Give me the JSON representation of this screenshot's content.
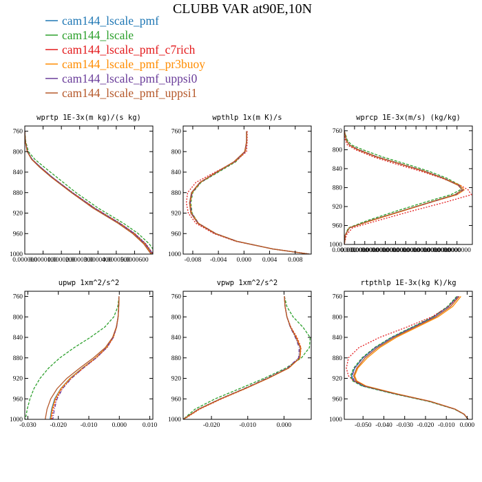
{
  "title": "CLUBB VAR at90E,10N",
  "legend": [
    {
      "name": "cam144_lscale_pmf",
      "color": "#1f77b4",
      "dash": ""
    },
    {
      "name": "cam144_lscale",
      "color": "#2ca02c",
      "dash": "4,2"
    },
    {
      "name": "cam144_lscale_pmf_c7rich",
      "color": "#e31a1c",
      "dash": "2,2"
    },
    {
      "name": "cam144_lscale_pmf_pr3buoy",
      "color": "#ff8c00",
      "dash": ""
    },
    {
      "name": "cam144_lscale_pmf_uppsi0",
      "color": "#6a3d9a",
      "dash": "5,2,1,2"
    },
    {
      "name": "cam144_lscale_pmf_uppsi1",
      "color": "#b5582a",
      "dash": ""
    }
  ],
  "chart_data": [
    {
      "type": "line",
      "title": "wprtp  1E-3x(m kg)/(s kg)",
      "ylim": [
        1000,
        750
      ],
      "yticks": [
        "760",
        "800",
        "840",
        "880",
        "920",
        "960",
        "1000"
      ],
      "ytick_values": [
        760,
        800,
        840,
        880,
        920,
        960,
        1000
      ],
      "xlim": [
        0,
        7e-05
      ],
      "xticks": [
        "0.000000",
        "0.0000100",
        "0.0000200",
        "0.0000300",
        "0.0000400",
        "0.0000500",
        "0.0000600"
      ],
      "xtick_values": [
        0,
        1e-05,
        2e-05,
        3e-05,
        4e-05,
        5e-05,
        6e-05
      ],
      "y": [
        760,
        780,
        800,
        815,
        830,
        850,
        880,
        910,
        940,
        960,
        980,
        1000
      ],
      "series": [
        {
          "values": [
            0,
            3e-07,
            1.5e-06,
            4e-06,
            8.5e-06,
            1.5e-05,
            2.6e-05,
            3.8e-05,
            5.2e-05,
            6e-05,
            6.6e-05,
            7e-05
          ]
        },
        {
          "values": [
            0,
            5e-07,
            2e-06,
            5.5e-06,
            1.05e-05,
            1.75e-05,
            2.8e-05,
            4e-05,
            5.4e-05,
            6.2e-05,
            6.8e-05,
            7.2e-05
          ]
        },
        {
          "values": [
            0,
            3e-07,
            1.5e-06,
            4e-06,
            8.5e-06,
            1.5e-05,
            2.62e-05,
            3.82e-05,
            5.22e-05,
            6.02e-05,
            6.62e-05,
            7.02e-05
          ]
        },
        {
          "values": [
            0,
            3e-07,
            1.4e-06,
            3.8e-06,
            8e-06,
            1.45e-05,
            2.55e-05,
            3.75e-05,
            5.15e-05,
            5.95e-05,
            6.55e-05,
            6.95e-05
          ]
        },
        {
          "values": [
            0,
            3e-07,
            1.5e-06,
            4e-06,
            8.5e-06,
            1.5e-05,
            2.6e-05,
            3.8e-05,
            5.18e-05,
            5.98e-05,
            6.58e-05,
            6.98e-05
          ]
        },
        {
          "values": [
            0,
            3e-07,
            1.3e-06,
            3.7e-06,
            8e-06,
            1.45e-05,
            2.55e-05,
            3.72e-05,
            5.1e-05,
            5.9e-05,
            6.5e-05,
            6.9e-05
          ]
        }
      ]
    },
    {
      "type": "line",
      "title": "wpthlp  1x(m K)/s",
      "ylim": [
        1000,
        750
      ],
      "yticks": [
        "760",
        "800",
        "840",
        "880",
        "920",
        "960",
        "1000"
      ],
      "ytick_values": [
        760,
        800,
        840,
        880,
        920,
        960,
        1000
      ],
      "xlim": [
        -0.0095,
        0.0105
      ],
      "xticks": [
        "-0.008",
        "-0.004",
        "0.000",
        "0.004",
        "0.008"
      ],
      "xtick_values": [
        -0.008,
        -0.004,
        0,
        0.004,
        0.008
      ],
      "y": [
        760,
        780,
        800,
        820,
        840,
        860,
        880,
        900,
        920,
        940,
        960,
        975,
        990,
        1000
      ],
      "series": [
        {
          "values": [
            0.0004,
            0.0004,
            0.0002,
            -0.0015,
            -0.0042,
            -0.0068,
            -0.0082,
            -0.0085,
            -0.0083,
            -0.0072,
            -0.0045,
            -0.0012,
            0.0045,
            0.0102
          ]
        },
        {
          "values": [
            0.0004,
            0.0004,
            0.0002,
            -0.0013,
            -0.004,
            -0.0067,
            -0.008,
            -0.0083,
            -0.0081,
            -0.0071,
            -0.0044,
            -0.0011,
            0.0045,
            0.0102
          ]
        },
        {
          "values": [
            0.0005,
            0.0005,
            0.0004,
            -0.0014,
            -0.0045,
            -0.0075,
            -0.0088,
            -0.009,
            -0.0087,
            -0.0075,
            -0.0047,
            -0.0013,
            0.0045,
            0.0102
          ]
        },
        {
          "values": [
            0.0004,
            0.0004,
            0.0002,
            -0.0015,
            -0.0042,
            -0.0068,
            -0.0081,
            -0.0084,
            -0.0082,
            -0.0071,
            -0.0044,
            -0.0011,
            0.0045,
            0.0102
          ]
        },
        {
          "values": [
            0.0004,
            0.0004,
            0.0002,
            -0.0015,
            -0.0042,
            -0.0068,
            -0.0081,
            -0.0084,
            -0.0082,
            -0.0071,
            -0.0044,
            -0.0011,
            0.0045,
            0.0102
          ]
        },
        {
          "values": [
            0.0004,
            0.0004,
            0.0001,
            -0.0016,
            -0.0043,
            -0.0069,
            -0.0082,
            -0.0085,
            -0.0083,
            -0.0072,
            -0.0045,
            -0.0012,
            0.0045,
            0.0102
          ]
        }
      ]
    },
    {
      "type": "line",
      "title": "wprcp  1E-3x(m/s) (kg/kg)",
      "ylim": [
        1000,
        750
      ],
      "yticks": [
        "760",
        "800",
        "840",
        "880",
        "920",
        "960",
        "1000"
      ],
      "ytick_values": [
        760,
        800,
        840,
        880,
        920,
        960,
        1000
      ],
      "xlim": [
        0,
        1.25e-07
      ],
      "xticks": [
        "0.000000",
        "0.0000000",
        "0.0000000",
        "0.0000000",
        "0.0000000",
        "0.0000000",
        "0.0000000",
        "0.0000000",
        "0.0000000",
        "0.0000000",
        "0.0000000",
        "0.0000000"
      ],
      "xtick_values": [
        0,
        1e-08,
        2e-08,
        3e-08,
        4e-08,
        5e-08,
        6e-08,
        7e-08,
        8e-08,
        9e-08,
        1e-07,
        1.1e-07
      ],
      "y": [
        760,
        780,
        790,
        800,
        815,
        830,
        845,
        860,
        875,
        885,
        895,
        910,
        930,
        950,
        965,
        980,
        1000
      ],
      "series": [
        {
          "values": [
            0,
            2e-09,
            5e-09,
            1.4e-08,
            3.2e-08,
            5.5e-08,
            7.8e-08,
            9.7e-08,
            1.12e-07,
            1.15e-07,
            1.08e-07,
            8.5e-08,
            5.5e-08,
            2.5e-08,
            5e-09,
            1e-09,
            0
          ]
        },
        {
          "values": [
            0,
            3e-09,
            7e-09,
            1.8e-08,
            3.7e-08,
            6e-08,
            8.2e-08,
            1e-07,
            1.13e-07,
            1.13e-07,
            1.04e-07,
            8e-08,
            5e-08,
            2.2e-08,
            4e-09,
            1e-09,
            0
          ]
        },
        {
          "values": [
            0,
            1e-09,
            3e-09,
            1.1e-08,
            2.8e-08,
            5e-08,
            7.4e-08,
            9.5e-08,
            1.13e-07,
            1.21e-07,
            1.24e-07,
            1e-07,
            6.5e-08,
            3.2e-08,
            8e-09,
            2e-09,
            0
          ]
        },
        {
          "values": [
            0,
            2e-09,
            5e-09,
            1.4e-08,
            3.2e-08,
            5.5e-08,
            7.8e-08,
            9.7e-08,
            1.13e-07,
            1.17e-07,
            1.1e-07,
            8.6e-08,
            5.6e-08,
            2.6e-08,
            5e-09,
            1e-09,
            0
          ]
        },
        {
          "values": [
            0,
            2e-09,
            5e-09,
            1.4e-08,
            3.2e-08,
            5.5e-08,
            7.8e-08,
            9.7e-08,
            1.12e-07,
            1.16e-07,
            1.09e-07,
            8.6e-08,
            5.5e-08,
            2.5e-08,
            5e-09,
            1e-09,
            0
          ]
        },
        {
          "values": [
            0,
            2e-09,
            5e-09,
            1.3e-08,
            3.1e-08,
            5.4e-08,
            7.7e-08,
            9.6e-08,
            1.11e-07,
            1.15e-07,
            1.08e-07,
            8.5e-08,
            5.5e-08,
            2.5e-08,
            5e-09,
            1e-09,
            0
          ]
        }
      ]
    },
    {
      "type": "line",
      "title": "upwp  1xm^2/s^2",
      "ylim": [
        1000,
        750
      ],
      "yticks": [
        "760",
        "800",
        "840",
        "880",
        "920",
        "960",
        "1000"
      ],
      "ytick_values": [
        760,
        800,
        840,
        880,
        920,
        960,
        1000
      ],
      "xlim": [
        -0.031,
        0.011
      ],
      "xticks": [
        "-0.030",
        "-0.020",
        "-0.010",
        "0.000",
        "0.010"
      ],
      "xtick_values": [
        -0.03,
        -0.02,
        -0.01,
        0,
        0.01
      ],
      "y": [
        760,
        780,
        800,
        820,
        840,
        860,
        880,
        900,
        920,
        940,
        960,
        980,
        1000
      ],
      "series": [
        {
          "values": [
            -0.0001,
            -0.0002,
            -0.0004,
            -0.0009,
            -0.002,
            -0.0042,
            -0.0078,
            -0.0122,
            -0.0162,
            -0.0192,
            -0.0212,
            -0.0222,
            -0.0227
          ]
        },
        {
          "values": [
            -0.0001,
            -0.0005,
            -0.0018,
            -0.0048,
            -0.0095,
            -0.0148,
            -0.0195,
            -0.0232,
            -0.026,
            -0.028,
            -0.0293,
            -0.0302,
            -0.0308
          ]
        },
        {
          "values": [
            -0.0001,
            -0.0002,
            -0.0004,
            -0.0009,
            -0.0019,
            -0.004,
            -0.0075,
            -0.0118,
            -0.0158,
            -0.0188,
            -0.0207,
            -0.0217,
            -0.0222
          ]
        },
        {
          "values": [
            -0.0001,
            -0.0002,
            -0.0004,
            -0.0009,
            -0.002,
            -0.0042,
            -0.0078,
            -0.0121,
            -0.0161,
            -0.0191,
            -0.021,
            -0.022,
            -0.0225
          ]
        },
        {
          "values": [
            -0.0001,
            -0.0002,
            -0.0004,
            -0.0009,
            -0.002,
            -0.0041,
            -0.0076,
            -0.0118,
            -0.0157,
            -0.0186,
            -0.0204,
            -0.0213,
            -0.0218
          ]
        },
        {
          "values": [
            -0.0001,
            -0.0002,
            -0.0004,
            -0.001,
            -0.0022,
            -0.0046,
            -0.0085,
            -0.013,
            -0.0172,
            -0.0204,
            -0.0225,
            -0.0237,
            -0.0243
          ]
        }
      ]
    },
    {
      "type": "line",
      "title": "vpwp  1xm^2/s^2",
      "ylim": [
        1000,
        750
      ],
      "yticks": [
        "760",
        "800",
        "840",
        "880",
        "920",
        "960",
        "1000"
      ],
      "ytick_values": [
        760,
        800,
        840,
        880,
        920,
        960,
        1000
      ],
      "xlim": [
        -0.0278,
        0.0075
      ],
      "xticks": [
        "-0.020",
        "-0.010",
        "0.000"
      ],
      "xtick_values": [
        -0.02,
        -0.01,
        0
      ],
      "y": [
        760,
        780,
        800,
        820,
        840,
        860,
        880,
        900,
        920,
        940,
        960,
        980,
        1000
      ],
      "series": [
        {
          "values": [
            0.0001,
            0.0003,
            0.0008,
            0.0018,
            0.0033,
            0.0045,
            0.0043,
            0.0012,
            -0.0045,
            -0.0108,
            -0.0175,
            -0.0235,
            -0.0278
          ]
        },
        {
          "values": [
            0.0001,
            0.0008,
            0.0025,
            0.0052,
            0.0072,
            0.007,
            0.0048,
            0.0005,
            -0.0055,
            -0.0122,
            -0.019,
            -0.0245,
            -0.0278
          ]
        },
        {
          "values": [
            0.0001,
            0.0003,
            0.0008,
            0.0019,
            0.0036,
            0.0047,
            0.0044,
            0.0013,
            -0.0044,
            -0.0106,
            -0.0172,
            -0.0232,
            -0.0276
          ]
        },
        {
          "values": [
            0.0001,
            0.0003,
            0.0008,
            0.0018,
            0.0034,
            0.0046,
            0.0044,
            0.0013,
            -0.0044,
            -0.0107,
            -0.0174,
            -0.0234,
            -0.0277
          ]
        },
        {
          "values": [
            0.0001,
            0.0003,
            0.0008,
            0.0017,
            0.0031,
            0.0042,
            0.004,
            0.0009,
            -0.0048,
            -0.011,
            -0.0176,
            -0.0236,
            -0.0278
          ]
        },
        {
          "values": [
            0.0001,
            0.0003,
            0.0008,
            0.0018,
            0.0033,
            0.0045,
            0.0043,
            0.0012,
            -0.0045,
            -0.0108,
            -0.0175,
            -0.0235,
            -0.0278
          ]
        }
      ]
    },
    {
      "type": "line",
      "title": "rtpthlp  1E-3x(kg K)/kg",
      "ylim": [
        1000,
        750
      ],
      "yticks": [
        "760",
        "800",
        "840",
        "880",
        "920",
        "960",
        "1000"
      ],
      "ytick_values": [
        760,
        800,
        840,
        880,
        920,
        960,
        1000
      ],
      "xlim": [
        -0.059,
        0.0025
      ],
      "xticks": [
        "-0.050",
        "-0.040",
        "-0.030",
        "-0.020",
        "-0.010",
        "0.000"
      ],
      "xtick_values": [
        -0.05,
        -0.04,
        -0.03,
        -0.02,
        -0.01,
        0
      ],
      "y": [
        760,
        780,
        800,
        820,
        840,
        860,
        880,
        900,
        915,
        925,
        935,
        950,
        965,
        980,
        990,
        1000
      ],
      "series": [
        {
          "values": [
            -0.0045,
            -0.009,
            -0.016,
            -0.026,
            -0.036,
            -0.044,
            -0.05,
            -0.054,
            -0.0555,
            -0.0545,
            -0.05,
            -0.035,
            -0.018,
            -0.006,
            -0.0015,
            0.0005
          ]
        },
        {
          "values": [
            -0.005,
            -0.0095,
            -0.0165,
            -0.0265,
            -0.0365,
            -0.0445,
            -0.0505,
            -0.0545,
            -0.056,
            -0.055,
            -0.0505,
            -0.0355,
            -0.0185,
            -0.0062,
            -0.0016,
            0.0005
          ]
        },
        {
          "values": [
            -0.004,
            -0.009,
            -0.017,
            -0.029,
            -0.042,
            -0.052,
            -0.057,
            -0.058,
            -0.057,
            -0.0545,
            -0.049,
            -0.034,
            -0.0175,
            -0.0058,
            -0.0014,
            0.0005
          ]
        },
        {
          "values": [
            -0.003,
            -0.007,
            -0.014,
            -0.024,
            -0.034,
            -0.042,
            -0.048,
            -0.0525,
            -0.054,
            -0.053,
            -0.0485,
            -0.034,
            -0.0175,
            -0.0058,
            -0.0014,
            0.0005
          ]
        },
        {
          "values": [
            -0.0045,
            -0.009,
            -0.016,
            -0.026,
            -0.036,
            -0.044,
            -0.05,
            -0.054,
            -0.0552,
            -0.0542,
            -0.0497,
            -0.0348,
            -0.0178,
            -0.0059,
            -0.0015,
            0.0005
          ]
        },
        {
          "values": [
            -0.0038,
            -0.008,
            -0.015,
            -0.025,
            -0.035,
            -0.043,
            -0.049,
            -0.053,
            -0.0545,
            -0.0535,
            -0.049,
            -0.0345,
            -0.0178,
            -0.0059,
            -0.0015,
            0.0005
          ]
        }
      ]
    }
  ]
}
